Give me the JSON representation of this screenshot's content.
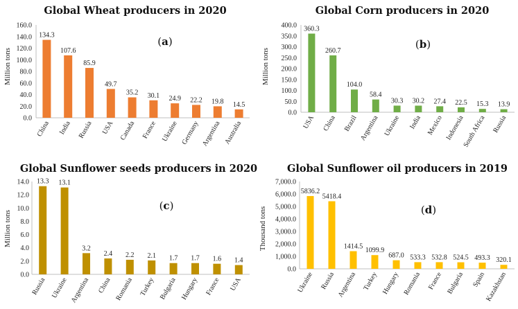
{
  "chart_data": [
    {
      "type": "bar",
      "panel": "a",
      "title": "Global Wheat producers in 2020",
      "ylabel": "Million tons",
      "categories": [
        "China",
        "India",
        "Russia",
        "USA",
        "Canada",
        "France",
        "Ukraine",
        "Germany",
        "Argentina",
        "Australia"
      ],
      "values": [
        134.3,
        107.6,
        85.9,
        49.7,
        35.2,
        30.1,
        24.9,
        22.2,
        19.8,
        14.5
      ],
      "labels": [
        "134.3",
        "107.6",
        "85.9",
        "49.7",
        "35.2",
        "30.1",
        "24.9",
        "22.2",
        "19.8",
        "14.5"
      ],
      "ylim": [
        0,
        160
      ],
      "yticks": [
        "0.0",
        "20.0",
        "40.0",
        "60.0",
        "80.0",
        "100.0",
        "120.0",
        "140.0",
        "160.0"
      ],
      "color": "#ed7d31"
    },
    {
      "type": "bar",
      "panel": "b",
      "title": "Global Corn producers in 2020",
      "ylabel": "Million tons",
      "categories": [
        "USA",
        "China",
        "Brazil",
        "Argentina",
        "Ukraine",
        "India",
        "Mexico",
        "Indonesia",
        "South Africa",
        "Russia"
      ],
      "values": [
        360.3,
        260.7,
        104.0,
        58.4,
        30.3,
        30.2,
        27.4,
        22.5,
        15.3,
        13.9
      ],
      "labels": [
        "360.3",
        "260.7",
        "104.0",
        "58.4",
        "30.3",
        "30.2",
        "27.4",
        "22.5",
        "15.3",
        "13.9"
      ],
      "ylim": [
        0,
        400
      ],
      "yticks": [
        "0.0",
        "50.0",
        "100.0",
        "150.0",
        "200.0",
        "250.0",
        "300.0",
        "350.0",
        "400.0"
      ],
      "color": "#70ad47"
    },
    {
      "type": "bar",
      "panel": "c",
      "title": "Global Sunflower seeds producers in 2020",
      "ylabel": "Million tons",
      "categories": [
        "Russia",
        "Ukraine",
        "Argentina",
        "China",
        "Romania",
        "Turkey",
        "Bulgaria",
        "Hungary",
        "France",
        "USA"
      ],
      "values": [
        13.3,
        13.1,
        3.2,
        2.4,
        2.2,
        2.1,
        1.7,
        1.7,
        1.6,
        1.4
      ],
      "labels": [
        "13.3",
        "13.1",
        "3.2",
        "2.4",
        "2.2",
        "2.1",
        "1.7",
        "1.7",
        "1.6",
        "1.4"
      ],
      "ylim": [
        0,
        14
      ],
      "yticks": [
        "0.0",
        "2.0",
        "4.0",
        "6.0",
        "8.0",
        "10.0",
        "12.0",
        "14.0"
      ],
      "color": "#bf9000"
    },
    {
      "type": "bar",
      "panel": "d",
      "title": "Global Sunflower oil producers in 2019",
      "ylabel": "Thousand tons",
      "categories": [
        "Ukraine",
        "Russia",
        "Argentina",
        "Turkey",
        "Hungary",
        "Romania",
        "France",
        "Bulgaria",
        "Spain",
        "Kazakhstan"
      ],
      "values": [
        5836.2,
        5418.4,
        1414.5,
        1099.9,
        687.0,
        533.3,
        532.8,
        524.5,
        493.3,
        320.1
      ],
      "labels": [
        "5836.2",
        "5418.4",
        "1414.5",
        "1099.9",
        "687.0",
        "533.3",
        "532.8",
        "524.5",
        "493.3",
        "320.1"
      ],
      "ylim": [
        0,
        7000
      ],
      "yticks": [
        "0.0",
        "1,000.0",
        "2,000.0",
        "3,000.0",
        "4,000.0",
        "5,000.0",
        "6,000.0",
        "7,000.0"
      ],
      "color": "#ffc000"
    }
  ]
}
